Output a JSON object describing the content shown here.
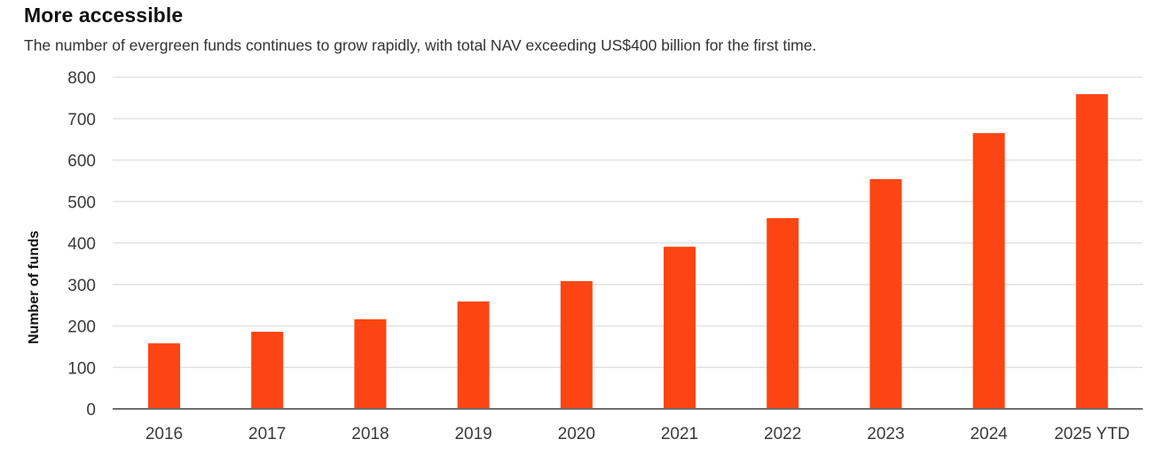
{
  "header": {
    "title": "More accessible",
    "subtitle": "The number of evergreen funds continues to grow rapidly, with total NAV exceeding US$400 billion for the first time."
  },
  "colors": {
    "bar": "#fc4512",
    "grid": "#e2e2e2",
    "axis": "#6e6e6e"
  },
  "chart_data": {
    "type": "bar",
    "title": "More accessible",
    "subtitle": "The number of evergreen funds continues to grow rapidly, with total NAV exceeding US$400 billion for the first time.",
    "xlabel": "",
    "ylabel": "Number of funds",
    "categories": [
      "2016",
      "2017",
      "2018",
      "2019",
      "2020",
      "2021",
      "2022",
      "2023",
      "2024",
      "2025 YTD"
    ],
    "series": [
      {
        "name": "Number of funds",
        "values": [
          158,
          186,
          216,
          259,
          308,
          391,
          460,
          554,
          665,
          759
        ]
      }
    ],
    "ylim": [
      0,
      800
    ],
    "yticks": [
      0,
      100,
      200,
      300,
      400,
      500,
      600,
      700,
      800
    ],
    "grid": true,
    "legend": "none"
  }
}
